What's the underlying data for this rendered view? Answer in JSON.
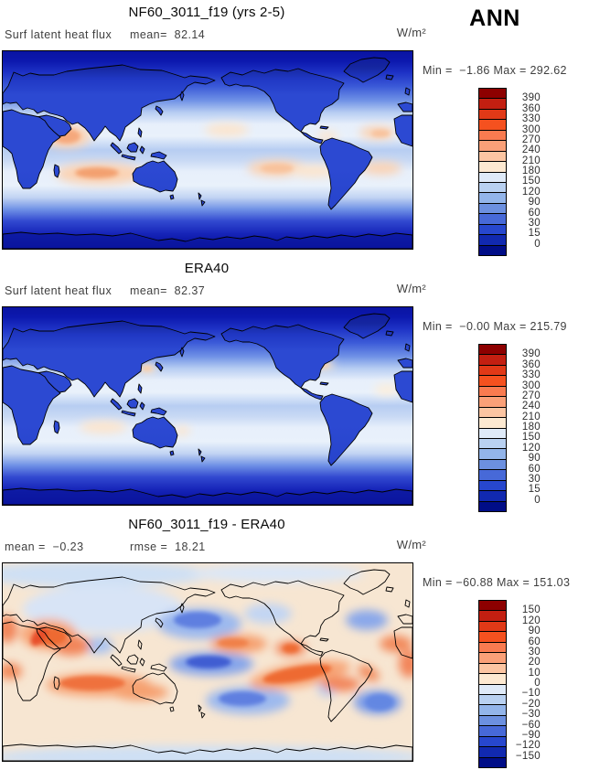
{
  "season": "ANN",
  "panels": [
    {
      "id": "model",
      "title": "NF60_3011_f19 (yrs 2-5)",
      "stat_a": "Surf latent heat flux",
      "stat_b": "mean=  82.14",
      "units": "W/m²",
      "minmax": "Min =  −1.86 Max = 292.62",
      "colorbar_labels": [
        "390",
        "360",
        "330",
        "300",
        "270",
        "240",
        "210",
        "180",
        "150",
        "120",
        "90",
        "60",
        "30",
        "15",
        "0"
      ]
    },
    {
      "id": "era40",
      "title": "ERA40",
      "stat_a": "Surf latent heat flux",
      "stat_b": "mean=  82.37",
      "units": "W/m²",
      "minmax": "Min =  −0.00 Max = 215.79",
      "colorbar_labels": [
        "390",
        "360",
        "330",
        "300",
        "270",
        "240",
        "210",
        "180",
        "150",
        "120",
        "90",
        "60",
        "30",
        "15",
        "0"
      ]
    },
    {
      "id": "difference",
      "title": "NF60_3011_f19 - ERA40",
      "stat_a": "mean =  −0.23",
      "stat_b": "rmse =  18.21",
      "units": "W/m²",
      "minmax": "Min = −60.88 Max = 151.03",
      "colorbar_labels": [
        "150",
        "120",
        "90",
        "60",
        "30",
        "20",
        "10",
        "0",
        "−10",
        "−20",
        "−30",
        "−60",
        "−90",
        "−120",
        "−150"
      ]
    }
  ],
  "colorbar_colors": [
    "#8d0000",
    "#c31f11",
    "#e13917",
    "#f5511f",
    "#f97b50",
    "#faa078",
    "#fcc5a2",
    "#fde9d1",
    "#dfeaf8",
    "#b9d1f1",
    "#93b5ea",
    "#6c90e0",
    "#4769d8",
    "#2747ce",
    "#1129b0",
    "#000d87"
  ],
  "chart_data": [
    {
      "type": "heatmap",
      "title": "NF60_3011_f19 (yrs 2-5)",
      "variable": "Surf latent heat flux",
      "season": "ANN",
      "units": "W/m²",
      "mean": 82.14,
      "min": -1.86,
      "max": 292.62,
      "levels": [
        0,
        15,
        30,
        60,
        90,
        120,
        150,
        180,
        210,
        240,
        270,
        300,
        330,
        360,
        390
      ],
      "palette": "dark blue (low) through white to dark red (high), 16 bands",
      "layout": "global map, Pacific-centered, colorbar on right"
    },
    {
      "type": "heatmap",
      "title": "ERA40",
      "variable": "Surf latent heat flux",
      "season": "ANN",
      "units": "W/m²",
      "mean": 82.37,
      "min": -0.0,
      "max": 215.79,
      "levels": [
        0,
        15,
        30,
        60,
        90,
        120,
        150,
        180,
        210,
        240,
        270,
        300,
        330,
        360,
        390
      ],
      "palette": "dark blue (low) through white to dark red (high), 16 bands",
      "layout": "global map, Pacific-centered, colorbar on right"
    },
    {
      "type": "heatmap",
      "title": "NF60_3011_f19 - ERA40",
      "season": "ANN",
      "units": "W/m²",
      "mean": -0.23,
      "rmse": 18.21,
      "min": -60.88,
      "max": 151.03,
      "levels": [
        -150,
        -120,
        -90,
        -60,
        -30,
        -20,
        -10,
        0,
        10,
        20,
        30,
        60,
        90,
        120,
        150
      ],
      "palette": "blue (negative) through white to red (positive), 16 bands",
      "layout": "global difference map, Pacific-centered, colorbar on right"
    }
  ]
}
